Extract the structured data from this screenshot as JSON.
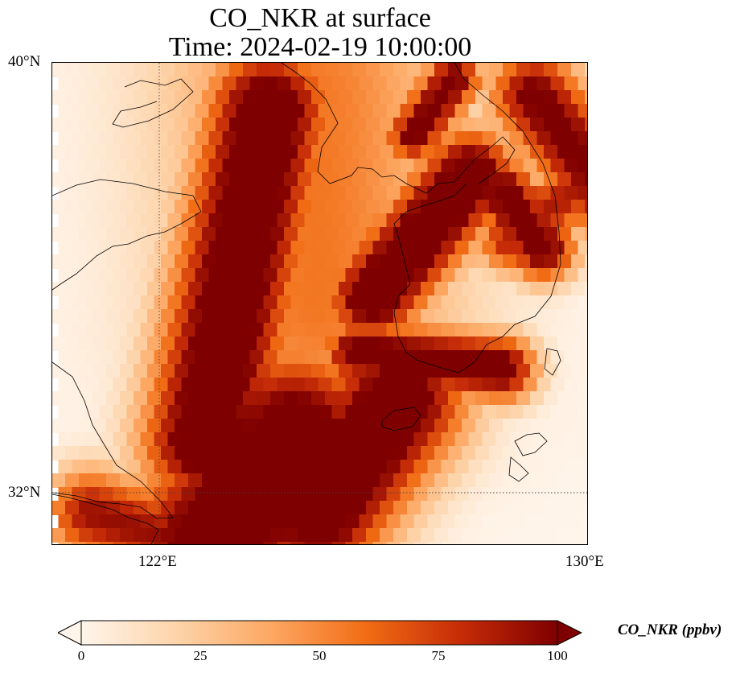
{
  "figure": {
    "title_line1": "CO_NKR at surface",
    "title_line2": "Time: 2024-02-19 10:00:00"
  },
  "axes": {
    "y_ticks": [
      "40°N",
      "32°N"
    ],
    "x_ticks": [
      "122°E",
      "130°E"
    ]
  },
  "colorbar": {
    "label": "CO_NKR (ppbv)",
    "ticks": [
      "0",
      "25",
      "50",
      "75",
      "100"
    ],
    "range": [
      0,
      100
    ],
    "colormap": [
      "#fff5eb",
      "#fdd4aa",
      "#fda762",
      "#f16c14",
      "#c52b07",
      "#7f0000"
    ],
    "extend": "both"
  },
  "chart_data": {
    "type": "heatmap",
    "title": "CO_NKR at surface\nTime: 2024-02-19 10:00:00",
    "variable": "CO_NKR",
    "units": "ppbv",
    "level": "surface",
    "time": "2024-02-19 10:00:00",
    "lon_range": [
      120,
      130
    ],
    "lat_range": [
      31,
      40
    ],
    "gridlines": {
      "lon": [
        122,
        130
      ],
      "lat": [
        32,
        40
      ],
      "style": "dotted"
    },
    "value_range": [
      0,
      100
    ],
    "plume_features": [
      {
        "description": "high-concentration band over Yellow Sea from 38.8N 123.3E to 31.3N 122.5E",
        "approx_max": 100
      },
      {
        "description": "band along west coast of Korean Peninsula 37.5N 127E to 33.5N 126E",
        "approx_max": 100
      },
      {
        "description": "band over East Sea coast 40N 128E to 38N 130E",
        "approx_max": 90
      },
      {
        "description": "broad plume over East China Sea south of 34N",
        "approx_max": 100
      }
    ]
  }
}
